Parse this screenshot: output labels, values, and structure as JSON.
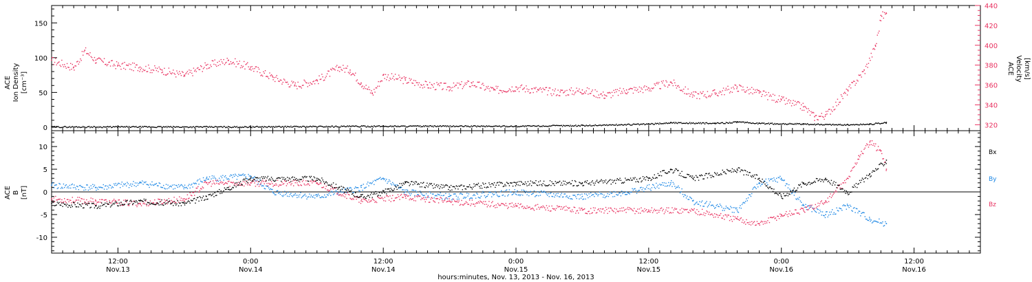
{
  "colors": {
    "black": "#000000",
    "red": "#e8305f",
    "blue": "#1e88e5",
    "text": "#222222"
  },
  "x_axis": {
    "title": "hours:minutes, Nov. 13, 2013 - Nov. 16, 2013",
    "tick_labels": [
      {
        "time": "Nov.13 12:00",
        "line1": "12:00",
        "line2": "Nov.13"
      },
      {
        "time": "Nov.14 00:00",
        "line1": "0:00",
        "line2": "Nov.14"
      },
      {
        "time": "Nov.14 12:00",
        "line1": "12:00",
        "line2": "Nov.14"
      },
      {
        "time": "Nov.15 00:00",
        "line1": "0:00",
        "line2": "Nov.15"
      },
      {
        "time": "Nov.15 12:00",
        "line1": "12:00",
        "line2": "Nov.15"
      },
      {
        "time": "Nov.16 00:00",
        "line1": "0:00",
        "line2": "Nov.16"
      },
      {
        "time": "Nov.16 12:00",
        "line1": "12:00",
        "line2": "Nov.16"
      }
    ]
  },
  "chart_data": [
    {
      "type": "scatter",
      "panel": "top",
      "ylabel_lines": [
        "ACE",
        "Ion Density",
        "[cm⁻³]"
      ],
      "ylim": [
        -5,
        175
      ],
      "yticks": [
        0,
        50,
        100,
        150
      ],
      "y2label_lines": [
        "ACE",
        "Velocity",
        "[km/s]"
      ],
      "y2lim": [
        314,
        440
      ],
      "y2ticks": [
        320,
        340,
        360,
        380,
        400,
        420,
        440
      ],
      "series": [
        {
          "axis": "left",
          "color": "#000000",
          "points": [
            [
              "Nov.13 06:00",
              1
            ],
            [
              "Nov.13 12:00",
              1
            ],
            [
              "Nov.14 00:00",
              1
            ],
            [
              "Nov.14 12:00",
              2
            ],
            [
              "Nov.15 00:00",
              2
            ],
            [
              "Nov.15 06:00",
              3
            ],
            [
              "Nov.15 12:00",
              5
            ],
            [
              "Nov.15 14:00",
              7
            ],
            [
              "Nov.15 18:00",
              6
            ],
            [
              "Nov.15 20:00",
              8
            ],
            [
              "Nov.15 22:00",
              6
            ],
            [
              "Nov.16 02:00",
              5
            ],
            [
              "Nov.16 06:00",
              4
            ],
            [
              "Nov.16 08:00",
              5
            ],
            [
              "Nov.16 09:30",
              7
            ]
          ]
        },
        {
          "axis": "right",
          "color": "#e8305f",
          "points": [
            [
              "Nov.13 06:00",
              385
            ],
            [
              "Nov.13 08:00",
              378
            ],
            [
              "Nov.13 09:00",
              395
            ],
            [
              "Nov.13 10:00",
              385
            ],
            [
              "Nov.13 12:00",
              380
            ],
            [
              "Nov.13 14:00",
              378
            ],
            [
              "Nov.13 16:00",
              375
            ],
            [
              "Nov.13 18:00",
              370
            ],
            [
              "Nov.13 20:00",
              380
            ],
            [
              "Nov.13 22:00",
              385
            ],
            [
              "Nov.14 00:00",
              378
            ],
            [
              "Nov.14 02:00",
              368
            ],
            [
              "Nov.14 04:00",
              360
            ],
            [
              "Nov.14 06:00",
              365
            ],
            [
              "Nov.14 08:00",
              378
            ],
            [
              "Nov.14 09:00",
              375
            ],
            [
              "Nov.14 10:00",
              362
            ],
            [
              "Nov.14 11:00",
              352
            ],
            [
              "Nov.14 12:00",
              370
            ],
            [
              "Nov.14 14:00",
              365
            ],
            [
              "Nov.14 16:00",
              360
            ],
            [
              "Nov.14 18:00",
              358
            ],
            [
              "Nov.14 20:00",
              362
            ],
            [
              "Nov.14 22:00",
              355
            ],
            [
              "Nov.15 00:00",
              358
            ],
            [
              "Nov.15 02:00",
              355
            ],
            [
              "Nov.15 04:00",
              353
            ],
            [
              "Nov.15 06:00",
              355
            ],
            [
              "Nov.15 08:00",
              350
            ],
            [
              "Nov.15 10:00",
              355
            ],
            [
              "Nov.15 12:00",
              357
            ],
            [
              "Nov.15 14:00",
              363
            ],
            [
              "Nov.15 16:00",
              350
            ],
            [
              "Nov.15 18:00",
              352
            ],
            [
              "Nov.15 20:00",
              358
            ],
            [
              "Nov.15 22:00",
              352
            ],
            [
              "Nov.16 00:00",
              345
            ],
            [
              "Nov.16 02:00",
              338
            ],
            [
              "Nov.16 03:00",
              328
            ],
            [
              "Nov.16 04:00",
              330
            ],
            [
              "Nov.16 06:00",
              355
            ],
            [
              "Nov.16 07:30",
              375
            ],
            [
              "Nov.16 08:30",
              400
            ],
            [
              "Nov.16 09:00",
              430
            ],
            [
              "Nov.16 09:30",
              432
            ]
          ]
        }
      ]
    },
    {
      "type": "scatter",
      "panel": "bottom",
      "ylabel_lines": [
        "ACE",
        "B",
        "[nT]"
      ],
      "ylim": [
        -13.5,
        13.5
      ],
      "yticks": [
        -10,
        -5,
        0,
        5,
        10
      ],
      "zero_line": true,
      "series": [
        {
          "name": "Bx",
          "color": "#000000",
          "points": [
            [
              "Nov.13 06:00",
              -2.5
            ],
            [
              "Nov.13 10:00",
              -3
            ],
            [
              "Nov.13 14:00",
              -2
            ],
            [
              "Nov.13 18:00",
              -2.5
            ],
            [
              "Nov.13 20:00",
              -1
            ],
            [
              "Nov.13 22:00",
              1
            ],
            [
              "Nov.14 00:00",
              3
            ],
            [
              "Nov.14 06:00",
              3
            ],
            [
              "Nov.14 08:00",
              1
            ],
            [
              "Nov.14 10:00",
              -1
            ],
            [
              "Nov.14 12:00",
              0
            ],
            [
              "Nov.14 14:00",
              2
            ],
            [
              "Nov.14 18:00",
              1
            ],
            [
              "Nov.15 00:00",
              2
            ],
            [
              "Nov.15 06:00",
              2
            ],
            [
              "Nov.15 12:00",
              3
            ],
            [
              "Nov.15 14:00",
              5
            ],
            [
              "Nov.15 16:00",
              3
            ],
            [
              "Nov.15 20:00",
              5
            ],
            [
              "Nov.15 22:00",
              3
            ],
            [
              "Nov.16 00:00",
              -1
            ],
            [
              "Nov.16 02:00",
              2
            ],
            [
              "Nov.16 04:00",
              3
            ],
            [
              "Nov.16 06:00",
              0
            ],
            [
              "Nov.16 08:00",
              4
            ],
            [
              "Nov.16 09:30",
              7
            ]
          ]
        },
        {
          "name": "By",
          "color": "#1e88e5",
          "points": [
            [
              "Nov.13 06:00",
              1.5
            ],
            [
              "Nov.13 10:00",
              1
            ],
            [
              "Nov.13 14:00",
              2
            ],
            [
              "Nov.13 18:00",
              1
            ],
            [
              "Nov.13 20:00",
              3
            ],
            [
              "Nov.14 00:00",
              3.5
            ],
            [
              "Nov.14 02:00",
              0
            ],
            [
              "Nov.14 06:00",
              -1
            ],
            [
              "Nov.14 10:00",
              1
            ],
            [
              "Nov.14 12:00",
              3
            ],
            [
              "Nov.14 14:00",
              0
            ],
            [
              "Nov.14 18:00",
              -1
            ],
            [
              "Nov.15 00:00",
              0
            ],
            [
              "Nov.15 06:00",
              -1
            ],
            [
              "Nov.15 10:00",
              0
            ],
            [
              "Nov.15 14:00",
              2
            ],
            [
              "Nov.15 16:00",
              -2
            ],
            [
              "Nov.15 20:00",
              -4
            ],
            [
              "Nov.15 22:00",
              2
            ],
            [
              "Nov.16 00:00",
              3
            ],
            [
              "Nov.16 02:00",
              -3
            ],
            [
              "Nov.16 04:00",
              -5
            ],
            [
              "Nov.16 06:00",
              -3
            ],
            [
              "Nov.16 08:00",
              -6
            ],
            [
              "Nov.16 09:30",
              -7
            ]
          ]
        },
        {
          "name": "Bz",
          "color": "#e8305f",
          "points": [
            [
              "Nov.13 06:00",
              -1.5
            ],
            [
              "Nov.13 10:00",
              -2
            ],
            [
              "Nov.13 14:00",
              -2.5
            ],
            [
              "Nov.13 18:00",
              -1.5
            ],
            [
              "Nov.13 20:00",
              2
            ],
            [
              "Nov.14 00:00",
              2
            ],
            [
              "Nov.14 06:00",
              2
            ],
            [
              "Nov.14 10:00",
              -2
            ],
            [
              "Nov.14 14:00",
              -1
            ],
            [
              "Nov.14 18:00",
              -2
            ],
            [
              "Nov.15 00:00",
              -3
            ],
            [
              "Nov.15 06:00",
              -4
            ],
            [
              "Nov.15 12:00",
              -4
            ],
            [
              "Nov.15 16:00",
              -4
            ],
            [
              "Nov.15 20:00",
              -6
            ],
            [
              "Nov.15 22:00",
              -7
            ],
            [
              "Nov.16 00:00",
              -5
            ],
            [
              "Nov.16 02:00",
              -4
            ],
            [
              "Nov.16 04:00",
              -2
            ],
            [
              "Nov.16 06:00",
              3
            ],
            [
              "Nov.16 07:00",
              8
            ],
            [
              "Nov.16 08:00",
              11
            ],
            [
              "Nov.16 09:00",
              9
            ],
            [
              "Nov.16 09:30",
              5
            ]
          ]
        }
      ]
    }
  ]
}
